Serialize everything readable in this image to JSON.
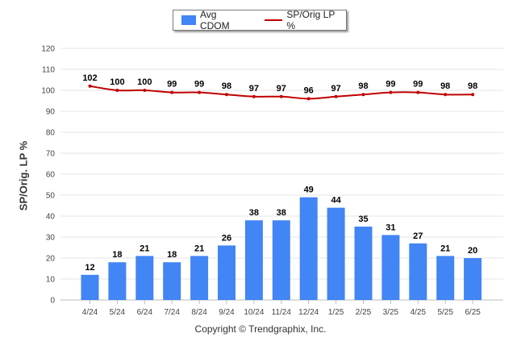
{
  "chart_data": {
    "type": "bar",
    "categories": [
      "4/24",
      "5/24",
      "6/24",
      "7/24",
      "8/24",
      "9/24",
      "10/24",
      "11/24",
      "12/24",
      "1/25",
      "2/25",
      "3/25",
      "4/25",
      "5/25",
      "6/25"
    ],
    "series": [
      {
        "name": "Avg CDOM",
        "type": "bar",
        "color": "#4285f4",
        "values": [
          12,
          18,
          21,
          18,
          21,
          26,
          38,
          38,
          49,
          44,
          35,
          31,
          27,
          21,
          20
        ]
      },
      {
        "name": "SP/Orig LP %",
        "type": "line",
        "color": "#c00000",
        "values": [
          102,
          100,
          100,
          99,
          99,
          98,
          97,
          97,
          96,
          97,
          98,
          99,
          99,
          98,
          98
        ]
      }
    ],
    "ylabel": "SP/Orig. LP %",
    "xlabel": "",
    "ylim": [
      0,
      120
    ],
    "yticks": [
      0,
      10,
      20,
      30,
      40,
      50,
      60,
      70,
      80,
      90,
      100,
      110,
      120
    ],
    "grid": true,
    "legend_position": "top-center"
  },
  "footer": "Copyright © Trendgraphix, Inc."
}
